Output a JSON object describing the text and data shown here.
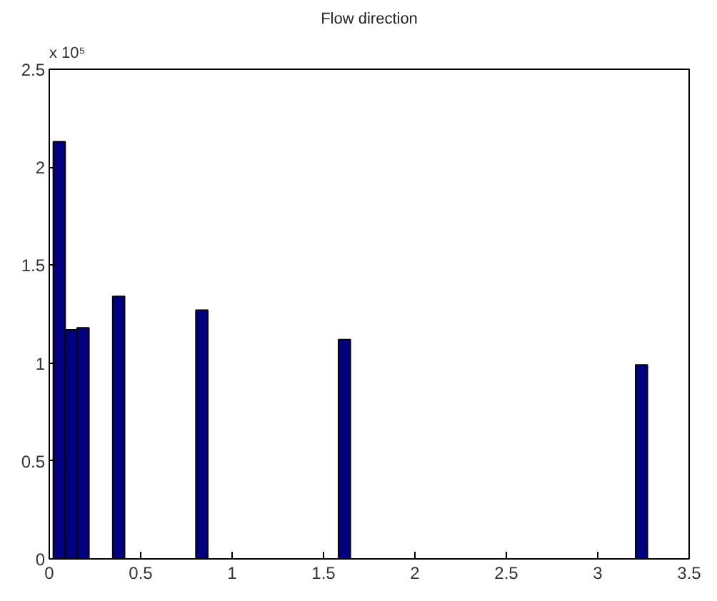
{
  "chart_data": {
    "type": "histogram",
    "title": "Flow direction",
    "annotations": [
      "x 10⁵"
    ],
    "bins": [
      0.022,
      0.087,
      0.152,
      0.217,
      0.282,
      0.347,
      0.412,
      0.477,
      0.542,
      0.607,
      0.672,
      0.737,
      0.802,
      0.867,
      0.932,
      0.997,
      1.062,
      1.127,
      1.192,
      1.257,
      1.322,
      1.387,
      1.452,
      1.517,
      1.582,
      1.647,
      1.712,
      1.777,
      1.842,
      1.907,
      1.972,
      2.037,
      2.102,
      2.167,
      2.232,
      2.297,
      2.362,
      2.427,
      2.492,
      2.557,
      2.622,
      2.687,
      2.752,
      2.817,
      2.882,
      2.947,
      3.012,
      3.077,
      3.142,
      3.207,
      3.272
    ],
    "values": [
      2.13,
      1.17,
      1.18,
      0,
      0,
      1.34,
      0,
      0,
      0,
      0,
      0,
      0,
      1.27,
      0,
      0,
      0,
      0,
      0,
      0,
      0,
      0,
      0,
      0,
      0,
      1.12,
      0,
      0,
      0,
      0,
      0,
      0,
      0,
      0,
      0,
      0,
      0,
      0,
      0,
      0,
      0,
      0,
      0,
      0,
      0,
      0,
      0,
      0,
      0,
      0,
      0.99
    ],
    "color": "#000080",
    "xlim": [
      0,
      3.5
    ],
    "xticks": [
      0,
      0.5,
      1,
      1.5,
      2,
      2.5,
      3,
      3.5
    ],
    "ylim": [
      0,
      2.5
    ],
    "yticks": [
      0,
      0.5,
      1,
      1.5,
      2,
      2.5
    ],
    "grid": false
  }
}
